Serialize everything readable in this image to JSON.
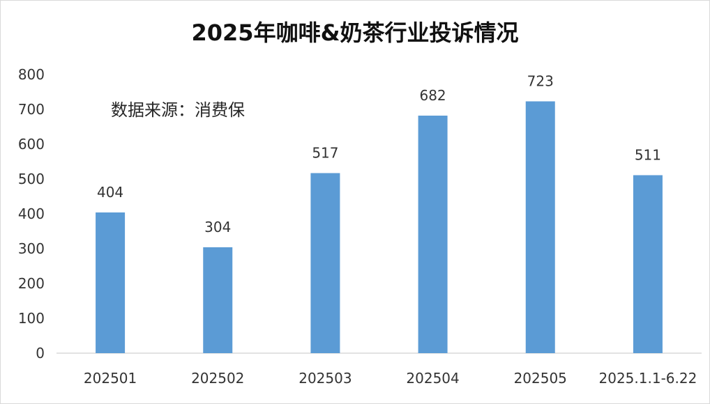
{
  "chart_data": {
    "type": "bar",
    "title": "2025年咖啡&奶茶行业投诉情况",
    "annotation": "数据来源：消费保",
    "categories": [
      "202501",
      "202502",
      "202503",
      "202504",
      "202505",
      "2025.1.1-6.22"
    ],
    "values": [
      404,
      304,
      517,
      682,
      723,
      511
    ],
    "data_labels": [
      "404",
      "304",
      "517",
      "682",
      "723",
      "511"
    ],
    "y_ticks": [
      "0",
      "100",
      "200",
      "300",
      "400",
      "500",
      "600",
      "700",
      "800"
    ],
    "ylim": [
      0,
      800
    ],
    "xlabel": "",
    "ylabel": "",
    "grid": false,
    "legend": "none",
    "colors": {
      "bar": "#5b9bd5",
      "text": "#333333",
      "axis": "#d0d0d0"
    }
  }
}
